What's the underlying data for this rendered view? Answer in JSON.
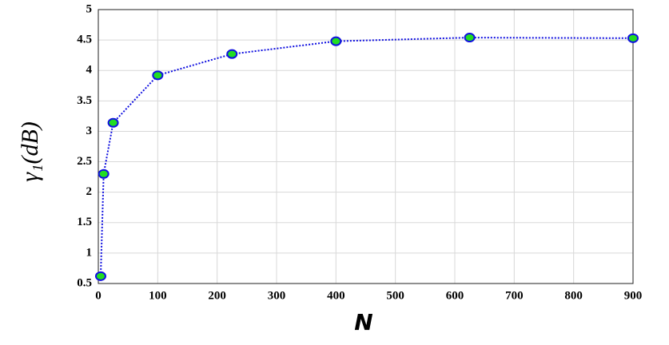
{
  "chart_data": {
    "type": "line",
    "x_label": "N",
    "y_label": "γ₁(dB)",
    "x": [
      4,
      9,
      25,
      100,
      225,
      400,
      625,
      900
    ],
    "series": [
      {
        "values": [
          0.62,
          2.3,
          3.14,
          3.92,
          4.27,
          4.48,
          4.54,
          4.53
        ],
        "color": "#1010e0",
        "marker_color": "#22dd22"
      }
    ],
    "xlim": [
      0,
      900
    ],
    "xticks": [
      0,
      100,
      200,
      300,
      400,
      500,
      600,
      700,
      800,
      900
    ],
    "ylim": [
      0.5,
      5
    ],
    "yticks": [
      0.5,
      1,
      1.5,
      2,
      2.5,
      3,
      3.5,
      4,
      4.5,
      5
    ],
    "grid": true
  }
}
